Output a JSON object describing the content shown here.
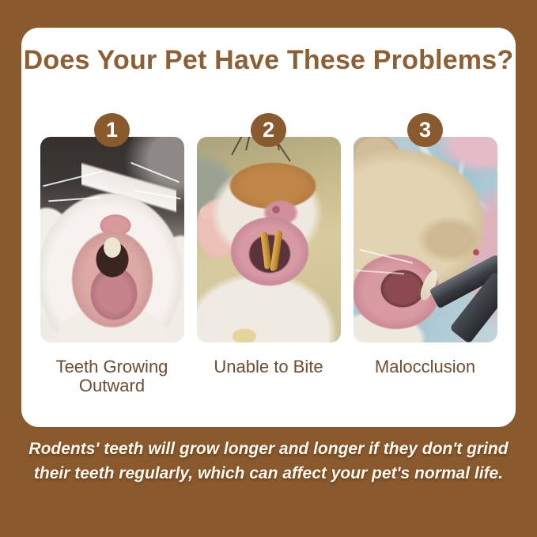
{
  "colors": {
    "background": "#8a5a2f",
    "card_background": "#ffffff",
    "title_text": "#8d5f35",
    "label_text": "#6e4b33",
    "badge_background": "#8a5a2f",
    "badge_number": "#ffffff",
    "footer_text": "#fdf8ee"
  },
  "header": {
    "title": "Does Your Pet Have These Problems?"
  },
  "problems": [
    {
      "number": "1",
      "label": "Teeth Growing Outward",
      "photo": "white rabbit with mouth wide open showing front teeth growing outward"
    },
    {
      "number": "2",
      "label": "Unable to Bite",
      "photo": "hamster held up showing long curved overgrown yellow front teeth"
    },
    {
      "number": "3",
      "label": "Malocclusion",
      "photo": "hamster having an overgrown tooth trimmed with metal clippers"
    }
  ],
  "footer": {
    "text": "Rodents' teeth will grow longer and longer if they don't grind their teeth regularly, which can affect your pet's normal life."
  }
}
